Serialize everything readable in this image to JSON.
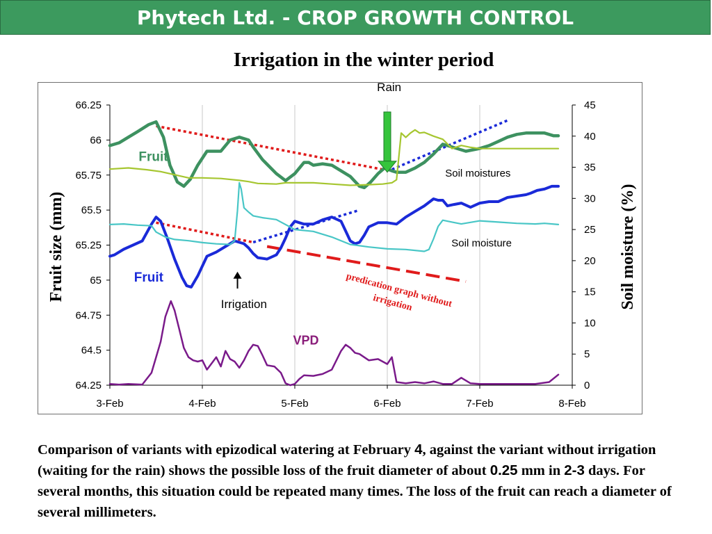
{
  "header": {
    "title": "Phytech Ltd. - CROP GROWTH CONTROL"
  },
  "caption": {
    "p1": "Comparison of variants with epizodical watering at February ",
    "n1": "4",
    "p2": ", against the variant without irrigation (waiting for the rain) shows the possible loss of the fruit diameter of about ",
    "n2": "0.25",
    "p3": " mm in ",
    "n3": "2-3",
    "p4": " days. For several months, this situation could be repeated many times. The loss of the fruit can reach a diameter of several millimeters."
  },
  "colors": {
    "fruit_upper": "#3d9160",
    "soil_upper": "#a6c630",
    "fruit_lower": "#1a2ad8",
    "soil_lower": "#48c6c6",
    "vpd": "#7a1a8a",
    "trend_red": "#e01b1b",
    "trend_blue": "#1a2ad8",
    "rain_arrow": "#35c43c"
  },
  "chart_data": {
    "type": "line",
    "title": "Irrigation in the winter period",
    "xlabel": "",
    "ylabel": "Fruit size (mm)",
    "ylabel_right": "Soil moisture (%)",
    "x_ticks": [
      "3-Feb",
      "4-Feb",
      "5-Feb",
      "6-Feb",
      "7-Feb",
      "8-Feb"
    ],
    "xlim": [
      3,
      8
    ],
    "ylim": [
      64.25,
      66.25
    ],
    "y_ticks": [
      "66.25",
      "66",
      "65.75",
      "65.5",
      "65.25",
      "65",
      "64.75",
      "64.5",
      "64.25"
    ],
    "ylim_right": [
      0,
      45
    ],
    "y_ticks_right": [
      "45",
      "40",
      "35",
      "30",
      "25",
      "20",
      "15",
      "10",
      "5",
      "0"
    ],
    "grid": "vertical",
    "series": [
      {
        "key": "fruit_upper",
        "axis": "left",
        "name": "Fruit",
        "x": [
          3.0,
          3.1,
          3.2,
          3.3,
          3.42,
          3.5,
          3.58,
          3.65,
          3.73,
          3.8,
          3.87,
          3.95,
          4.05,
          4.2,
          4.3,
          4.4,
          4.5,
          4.55,
          4.65,
          4.8,
          4.9,
          5.0,
          5.05,
          5.1,
          5.15,
          5.2,
          5.3,
          5.4,
          5.5,
          5.6,
          5.7,
          5.75,
          5.82,
          5.9,
          5.97,
          6.05,
          6.1,
          6.2,
          6.3,
          6.4,
          6.5,
          6.6,
          6.7,
          6.85,
          7.0,
          7.1,
          7.2,
          7.3,
          7.4,
          7.5,
          7.6,
          7.7,
          7.8,
          7.85
        ],
        "y": [
          65.96,
          65.98,
          66.02,
          66.06,
          66.11,
          66.13,
          66.02,
          65.82,
          65.7,
          65.67,
          65.72,
          65.82,
          65.92,
          65.92,
          66.0,
          66.02,
          66.0,
          65.95,
          65.86,
          65.76,
          65.71,
          65.76,
          65.8,
          65.84,
          65.84,
          65.82,
          65.83,
          65.82,
          65.78,
          65.74,
          65.67,
          65.66,
          65.7,
          65.76,
          65.8,
          65.78,
          65.77,
          65.77,
          65.8,
          65.84,
          65.9,
          65.97,
          65.95,
          65.92,
          65.94,
          65.96,
          65.99,
          66.02,
          66.04,
          66.05,
          66.05,
          66.05,
          66.03,
          66.03
        ]
      },
      {
        "key": "soil_upper",
        "axis": "right",
        "name": "Soil moistures",
        "x": [
          3.0,
          3.2,
          3.4,
          3.55,
          3.7,
          3.85,
          4.0,
          4.2,
          4.4,
          4.5,
          4.6,
          4.8,
          4.9,
          5.0,
          5.2,
          5.4,
          5.6,
          5.8,
          5.95,
          6.05,
          6.1,
          6.12,
          6.15,
          6.2,
          6.25,
          6.3,
          6.35,
          6.4,
          6.5,
          6.6,
          6.7,
          6.8,
          6.9,
          7.0,
          7.2,
          7.5,
          7.7,
          7.85
        ],
        "y": [
          34.7,
          34.9,
          34.6,
          34.3,
          33.8,
          33.3,
          33.3,
          33.2,
          32.9,
          32.7,
          32.4,
          32.3,
          32.5,
          32.5,
          32.5,
          32.3,
          32.1,
          32.2,
          32.3,
          32.5,
          33.0,
          36.0,
          40.5,
          39.8,
          40.5,
          41.0,
          40.5,
          40.6,
          40.0,
          39.5,
          38.0,
          38.5,
          38.2,
          38.0,
          38.0,
          38.0,
          38.0,
          38.0
        ]
      },
      {
        "key": "fruit_lower",
        "axis": "left",
        "name": "Fruit",
        "x": [
          3.0,
          3.05,
          3.15,
          3.25,
          3.35,
          3.45,
          3.5,
          3.55,
          3.62,
          3.7,
          3.78,
          3.83,
          3.88,
          3.95,
          4.0,
          4.05,
          4.15,
          4.25,
          4.35,
          4.45,
          4.5,
          4.55,
          4.6,
          4.7,
          4.8,
          4.85,
          4.9,
          4.95,
          5.0,
          5.05,
          5.1,
          5.2,
          5.3,
          5.4,
          5.5,
          5.55,
          5.6,
          5.65,
          5.7,
          5.75,
          5.8,
          5.9,
          6.0,
          6.1,
          6.2,
          6.3,
          6.4,
          6.5,
          6.55,
          6.6,
          6.65,
          6.72,
          6.8,
          6.9,
          7.0,
          7.1,
          7.2,
          7.3,
          7.4,
          7.5,
          7.55,
          7.62,
          7.7,
          7.78,
          7.85
        ],
        "y": [
          65.17,
          65.18,
          65.22,
          65.25,
          65.28,
          65.4,
          65.45,
          65.42,
          65.3,
          65.15,
          65.02,
          64.96,
          64.95,
          65.03,
          65.1,
          65.17,
          65.2,
          65.24,
          65.28,
          65.26,
          65.23,
          65.19,
          65.16,
          65.15,
          65.18,
          65.23,
          65.3,
          65.38,
          65.42,
          65.41,
          65.4,
          65.4,
          65.43,
          65.45,
          65.42,
          65.35,
          65.28,
          65.26,
          65.27,
          65.32,
          65.38,
          65.41,
          65.41,
          65.4,
          65.45,
          65.49,
          65.53,
          65.58,
          65.57,
          65.57,
          65.53,
          65.54,
          65.55,
          65.52,
          65.55,
          65.56,
          65.56,
          65.59,
          65.6,
          65.61,
          65.62,
          65.64,
          65.65,
          65.67,
          65.67
        ]
      },
      {
        "key": "soil_lower",
        "axis": "right",
        "name": "Soil moisture",
        "x": [
          3.0,
          3.15,
          3.3,
          3.45,
          3.5,
          3.6,
          3.7,
          3.85,
          4.0,
          4.15,
          4.3,
          4.35,
          4.38,
          4.4,
          4.42,
          4.45,
          4.5,
          4.55,
          4.65,
          4.8,
          5.0,
          5.2,
          5.4,
          5.6,
          5.8,
          6.0,
          6.2,
          6.4,
          6.45,
          6.5,
          6.55,
          6.6,
          6.7,
          6.8,
          7.0,
          7.2,
          7.4,
          7.6,
          7.7,
          7.85
        ],
        "y": [
          25.8,
          25.9,
          25.7,
          25.6,
          24.6,
          23.8,
          23.4,
          23.2,
          22.9,
          22.7,
          22.6,
          23.2,
          28.0,
          32.5,
          31.5,
          28.5,
          27.8,
          27.2,
          26.9,
          26.6,
          25.0,
          24.7,
          23.8,
          22.6,
          22.2,
          21.9,
          21.8,
          21.5,
          21.8,
          23.5,
          25.5,
          26.5,
          26.2,
          25.9,
          26.4,
          26.2,
          26.0,
          25.9,
          26.0,
          25.8
        ]
      },
      {
        "key": "vpd",
        "axis": "right",
        "name": "VPD",
        "x": [
          3.0,
          3.1,
          3.2,
          3.35,
          3.45,
          3.55,
          3.6,
          3.66,
          3.7,
          3.75,
          3.8,
          3.85,
          3.9,
          3.95,
          4.0,
          4.05,
          4.1,
          4.15,
          4.2,
          4.25,
          4.3,
          4.35,
          4.4,
          4.45,
          4.5,
          4.55,
          4.6,
          4.65,
          4.7,
          4.78,
          4.85,
          4.9,
          4.95,
          5.0,
          5.05,
          5.1,
          5.2,
          5.3,
          5.4,
          5.5,
          5.55,
          5.6,
          5.65,
          5.7,
          5.8,
          5.9,
          6.0,
          6.05,
          6.1,
          6.2,
          6.3,
          6.4,
          6.5,
          6.6,
          6.7,
          6.75,
          6.8,
          6.9,
          7.0,
          7.2,
          7.4,
          7.6,
          7.75,
          7.85
        ],
        "y": [
          0.2,
          0.1,
          0.2,
          0.1,
          2.0,
          7.0,
          11.0,
          13.5,
          12.0,
          9.0,
          6.0,
          4.5,
          4.0,
          3.8,
          4.0,
          2.5,
          3.5,
          4.5,
          3.0,
          5.5,
          4.2,
          3.8,
          2.8,
          4.0,
          5.5,
          6.5,
          6.3,
          4.8,
          3.2,
          3.0,
          2.0,
          0.3,
          0.0,
          0.2,
          1.0,
          1.6,
          1.5,
          1.8,
          2.5,
          5.5,
          6.5,
          6.0,
          5.2,
          5.0,
          4.0,
          4.2,
          3.4,
          4.5,
          0.5,
          0.3,
          0.5,
          0.3,
          0.6,
          0.2,
          0.2,
          0.7,
          1.2,
          0.3,
          0.2,
          0.2,
          0.2,
          0.2,
          0.5,
          1.7
        ]
      }
    ],
    "trend_lines": [
      {
        "key": "trend_red",
        "axis": "left",
        "style": "dotted",
        "x": [
          3.5,
          5.95
        ],
        "y": [
          66.1,
          65.79
        ]
      },
      {
        "key": "trend_blue",
        "axis": "left",
        "style": "dotted",
        "x": [
          6.05,
          7.3
        ],
        "y": [
          65.79,
          66.14
        ]
      },
      {
        "key": "trend_red",
        "axis": "left",
        "style": "dotted",
        "x": [
          3.5,
          4.55
        ],
        "y": [
          65.41,
          65.27
        ]
      },
      {
        "key": "trend_blue",
        "axis": "left",
        "style": "dotted",
        "x": [
          4.55,
          5.7
        ],
        "y": [
          65.27,
          65.5
        ]
      },
      {
        "key": "trend_red",
        "axis": "left",
        "style": "dashed",
        "x": [
          4.7,
          6.85
        ],
        "y": [
          65.24,
          64.99
        ]
      }
    ],
    "annotations": [
      {
        "key": "rain",
        "text": "Rain",
        "x": 6.02,
        "y": 66.35,
        "axis": "left",
        "color": "#000000",
        "size": 17,
        "bold": false,
        "italic": false,
        "rotate": 0,
        "font": "sans",
        "anchor": "middle"
      },
      {
        "key": "fruit_upper_label",
        "text": "Fruit",
        "x": 3.47,
        "y": 65.85,
        "axis": "left",
        "color": "#3d9160",
        "size": 19,
        "bold": true,
        "italic": false,
        "rotate": 0,
        "font": "sans",
        "anchor": "middle"
      },
      {
        "key": "soil_moistures_label",
        "text": "Soil moistures",
        "x": 6.98,
        "y": 65.74,
        "axis": "left",
        "color": "#000000",
        "size": 15,
        "bold": false,
        "italic": false,
        "rotate": 0,
        "font": "sans",
        "anchor": "middle"
      },
      {
        "key": "soil_moisture_label",
        "text": "Soil moisture",
        "x": 7.02,
        "y": 65.24,
        "axis": "left",
        "color": "#000000",
        "size": 15,
        "bold": false,
        "italic": false,
        "rotate": 0,
        "font": "sans",
        "anchor": "middle"
      },
      {
        "key": "fruit_lower_label",
        "text": "Fruit",
        "x": 3.42,
        "y": 64.99,
        "axis": "left",
        "color": "#1a2ad8",
        "size": 19,
        "bold": true,
        "italic": false,
        "rotate": 0,
        "font": "sans",
        "anchor": "middle"
      },
      {
        "key": "irrigation_label",
        "text": "Irrigation",
        "x": 4.45,
        "y": 64.8,
        "axis": "left",
        "color": "#000000",
        "size": 17,
        "bold": false,
        "italic": false,
        "rotate": 0,
        "font": "sans",
        "anchor": "middle"
      },
      {
        "key": "vpd_label",
        "text": "VPD",
        "x": 5.12,
        "y": 64.54,
        "axis": "left",
        "color": "#8a1d7a",
        "size": 18,
        "bold": true,
        "italic": false,
        "rotate": 0,
        "font": "sans",
        "anchor": "middle"
      },
      {
        "key": "prediction_1",
        "text": "predication graph without",
        "x": 6.12,
        "y": 64.91,
        "axis": "left",
        "color": "#e01b1b",
        "size": 14,
        "bold": true,
        "italic": false,
        "rotate": 15,
        "font": "serif",
        "anchor": "middle"
      },
      {
        "key": "prediction_2",
        "text": "irrigation",
        "x": 6.05,
        "y": 64.82,
        "axis": "left",
        "color": "#e01b1b",
        "size": 14,
        "bold": true,
        "italic": false,
        "rotate": 15,
        "font": "serif",
        "anchor": "middle"
      }
    ],
    "markers": [
      {
        "key": "irrigation_arrow",
        "type": "arrow-up",
        "x": 4.38,
        "y_from": 64.94,
        "y_to": 65.06,
        "axis": "left",
        "color": "#000000"
      },
      {
        "key": "rain_arrow",
        "type": "arrow-down",
        "x": 6.0,
        "y_from": 66.25,
        "y_to": 65.77,
        "axis": "left",
        "color": "#35c43c"
      }
    ]
  }
}
